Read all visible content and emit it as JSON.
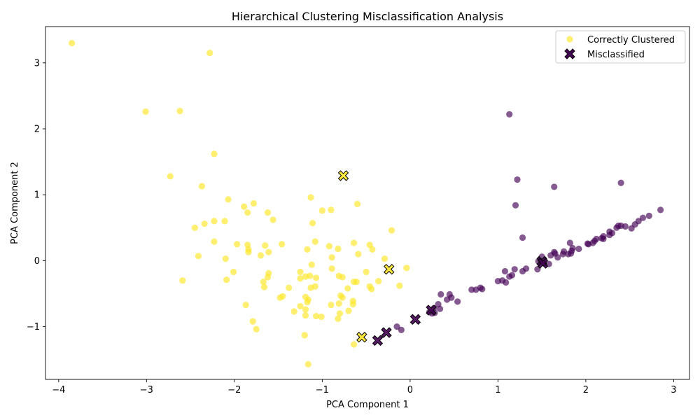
{
  "chart_data": {
    "type": "scatter",
    "title": "Hierarchical Clustering Misclassification Analysis",
    "xlabel": "PCA Component 1",
    "ylabel": "PCA Component 2",
    "xlim": [
      -4.15,
      3.18
    ],
    "ylim": [
      -1.8,
      3.55
    ],
    "xticks": [
      -4,
      -3,
      -2,
      -1,
      0,
      1,
      2,
      3
    ],
    "yticks": [
      -1,
      0,
      1,
      2,
      3
    ],
    "grid": false,
    "legend_position": "top-right",
    "colors": {
      "yellow": "#fde725",
      "purple": "#440154"
    },
    "legend": [
      {
        "label": "Correctly Clustered",
        "marker": "circle",
        "color": "#fde725"
      },
      {
        "label": "Misclassified",
        "marker": "x",
        "color": "#440154"
      }
    ],
    "series": [
      {
        "name": "Correctly Clustered",
        "marker": "circle",
        "points": [
          {
            "x": -3.85,
            "y": 3.3,
            "c": "yellow"
          },
          {
            "x": -2.28,
            "y": 3.15,
            "c": "yellow"
          },
          {
            "x": -3.01,
            "y": 2.26,
            "c": "yellow"
          },
          {
            "x": -2.62,
            "y": 2.27,
            "c": "yellow"
          },
          {
            "x": -2.23,
            "y": 1.62,
            "c": "yellow"
          },
          {
            "x": -2.73,
            "y": 1.28,
            "c": "yellow"
          },
          {
            "x": -2.37,
            "y": 1.13,
            "c": "yellow"
          },
          {
            "x": -2.07,
            "y": 0.93,
            "c": "yellow"
          },
          {
            "x": -1.89,
            "y": 0.82,
            "c": "yellow"
          },
          {
            "x": -1.78,
            "y": 0.87,
            "c": "yellow"
          },
          {
            "x": -1.85,
            "y": 0.73,
            "c": "yellow"
          },
          {
            "x": -1.62,
            "y": 0.73,
            "c": "yellow"
          },
          {
            "x": -1.56,
            "y": 0.62,
            "c": "yellow"
          },
          {
            "x": -2.23,
            "y": 0.6,
            "c": "yellow"
          },
          {
            "x": -2.11,
            "y": 0.6,
            "c": "yellow"
          },
          {
            "x": -2.34,
            "y": 0.56,
            "c": "yellow"
          },
          {
            "x": -2.45,
            "y": 0.5,
            "c": "yellow"
          },
          {
            "x": -2.23,
            "y": 0.29,
            "c": "yellow"
          },
          {
            "x": -1.97,
            "y": 0.25,
            "c": "yellow"
          },
          {
            "x": -1.85,
            "y": 0.24,
            "c": "yellow"
          },
          {
            "x": -1.65,
            "y": 0.23,
            "c": "yellow"
          },
          {
            "x": -1.46,
            "y": 0.25,
            "c": "yellow"
          },
          {
            "x": -1.84,
            "y": 0.17,
            "c": "yellow"
          },
          {
            "x": -1.84,
            "y": 0.13,
            "c": "yellow"
          },
          {
            "x": -1.61,
            "y": 0.13,
            "c": "yellow"
          },
          {
            "x": -1.7,
            "y": 0.08,
            "c": "yellow"
          },
          {
            "x": -2.41,
            "y": 0.07,
            "c": "yellow"
          },
          {
            "x": -2.1,
            "y": 0.03,
            "c": "yellow"
          },
          {
            "x": -2.01,
            "y": -0.17,
            "c": "yellow"
          },
          {
            "x": -1.61,
            "y": -0.19,
            "c": "yellow"
          },
          {
            "x": -1.62,
            "y": -0.25,
            "c": "yellow"
          },
          {
            "x": -2.59,
            "y": -0.3,
            "c": "yellow"
          },
          {
            "x": -2.09,
            "y": -0.29,
            "c": "yellow"
          },
          {
            "x": -1.67,
            "y": -0.32,
            "c": "yellow"
          },
          {
            "x": -1.66,
            "y": -0.4,
            "c": "yellow"
          },
          {
            "x": -1.38,
            "y": -0.41,
            "c": "yellow"
          },
          {
            "x": -1.45,
            "y": -0.54,
            "c": "yellow"
          },
          {
            "x": -1.48,
            "y": -0.56,
            "c": "yellow"
          },
          {
            "x": -1.87,
            "y": -0.67,
            "c": "yellow"
          },
          {
            "x": -1.32,
            "y": -0.77,
            "c": "yellow"
          },
          {
            "x": -1.79,
            "y": -0.92,
            "c": "yellow"
          },
          {
            "x": -1.75,
            "y": -1.04,
            "c": "yellow"
          },
          {
            "x": -1.2,
            "y": -1.13,
            "c": "yellow"
          },
          {
            "x": -1.16,
            "y": -1.57,
            "c": "yellow"
          },
          {
            "x": -1.13,
            "y": 0.96,
            "c": "yellow"
          },
          {
            "x": -1.0,
            "y": 0.76,
            "c": "yellow"
          },
          {
            "x": -0.9,
            "y": 0.77,
            "c": "yellow"
          },
          {
            "x": -0.6,
            "y": 0.86,
            "c": "yellow"
          },
          {
            "x": -1.11,
            "y": 0.57,
            "c": "yellow"
          },
          {
            "x": -0.21,
            "y": 0.46,
            "c": "yellow"
          },
          {
            "x": -1.08,
            "y": 0.29,
            "c": "yellow"
          },
          {
            "x": -0.64,
            "y": 0.27,
            "c": "yellow"
          },
          {
            "x": -0.46,
            "y": 0.24,
            "c": "yellow"
          },
          {
            "x": -0.92,
            "y": 0.22,
            "c": "yellow"
          },
          {
            "x": -1.17,
            "y": 0.17,
            "c": "yellow"
          },
          {
            "x": -0.82,
            "y": 0.18,
            "c": "yellow"
          },
          {
            "x": -0.43,
            "y": 0.17,
            "c": "yellow"
          },
          {
            "x": -0.59,
            "y": 0.1,
            "c": "yellow"
          },
          {
            "x": -0.89,
            "y": 0.05,
            "c": "yellow"
          },
          {
            "x": -0.29,
            "y": 0.03,
            "c": "yellow"
          },
          {
            "x": -1.12,
            "y": -0.06,
            "c": "yellow"
          },
          {
            "x": -0.89,
            "y": -0.12,
            "c": "yellow"
          },
          {
            "x": -0.04,
            "y": -0.11,
            "c": "yellow"
          },
          {
            "x": -1.25,
            "y": -0.17,
            "c": "yellow"
          },
          {
            "x": -0.5,
            "y": -0.17,
            "c": "yellow"
          },
          {
            "x": -1.19,
            "y": -0.24,
            "c": "yellow"
          },
          {
            "x": -1.14,
            "y": -0.23,
            "c": "yellow"
          },
          {
            "x": -0.81,
            "y": -0.23,
            "c": "yellow"
          },
          {
            "x": -1.25,
            "y": -0.27,
            "c": "yellow"
          },
          {
            "x": -0.77,
            "y": -0.25,
            "c": "yellow"
          },
          {
            "x": -1.07,
            "y": -0.26,
            "c": "yellow"
          },
          {
            "x": -0.64,
            "y": -0.32,
            "c": "yellow"
          },
          {
            "x": -0.61,
            "y": -0.32,
            "c": "yellow"
          },
          {
            "x": -0.36,
            "y": -0.31,
            "c": "yellow"
          },
          {
            "x": -1.08,
            "y": -0.39,
            "c": "yellow"
          },
          {
            "x": -0.46,
            "y": -0.39,
            "c": "yellow"
          },
          {
            "x": -0.12,
            "y": -0.38,
            "c": "yellow"
          },
          {
            "x": -1.13,
            "y": -0.41,
            "c": "yellow"
          },
          {
            "x": -0.71,
            "y": -0.42,
            "c": "yellow"
          },
          {
            "x": -0.44,
            "y": -0.43,
            "c": "yellow"
          },
          {
            "x": -0.79,
            "y": -0.53,
            "c": "yellow"
          },
          {
            "x": -1.19,
            "y": -0.55,
            "c": "yellow"
          },
          {
            "x": -0.77,
            "y": -0.56,
            "c": "yellow"
          },
          {
            "x": -1.16,
            "y": -0.59,
            "c": "yellow"
          },
          {
            "x": -1.17,
            "y": -0.63,
            "c": "yellow"
          },
          {
            "x": -0.65,
            "y": -0.61,
            "c": "yellow"
          },
          {
            "x": -0.81,
            "y": -0.65,
            "c": "yellow"
          },
          {
            "x": -0.65,
            "y": -0.66,
            "c": "yellow"
          },
          {
            "x": -0.9,
            "y": -0.67,
            "c": "yellow"
          },
          {
            "x": -1.25,
            "y": -0.69,
            "c": "yellow"
          },
          {
            "x": -1.19,
            "y": -0.74,
            "c": "yellow"
          },
          {
            "x": -0.7,
            "y": -0.76,
            "c": "yellow"
          },
          {
            "x": -0.8,
            "y": -0.8,
            "c": "yellow"
          },
          {
            "x": -1.19,
            "y": -0.83,
            "c": "yellow"
          },
          {
            "x": -1.07,
            "y": -0.84,
            "c": "yellow"
          },
          {
            "x": -1.01,
            "y": -0.85,
            "c": "yellow"
          },
          {
            "x": -0.82,
            "y": -0.88,
            "c": "yellow"
          },
          {
            "x": -0.64,
            "y": -1.27,
            "c": "yellow"
          },
          {
            "x": 1.13,
            "y": 2.22,
            "c": "purple"
          },
          {
            "x": 1.22,
            "y": 1.23,
            "c": "purple"
          },
          {
            "x": 2.4,
            "y": 1.18,
            "c": "purple"
          },
          {
            "x": 1.64,
            "y": 1.12,
            "c": "purple"
          },
          {
            "x": 1.2,
            "y": 0.84,
            "c": "purple"
          },
          {
            "x": 2.85,
            "y": 0.77,
            "c": "purple"
          },
          {
            "x": 2.72,
            "y": 0.68,
            "c": "purple"
          },
          {
            "x": 2.65,
            "y": 0.65,
            "c": "purple"
          },
          {
            "x": 2.6,
            "y": 0.6,
            "c": "purple"
          },
          {
            "x": 2.56,
            "y": 0.55,
            "c": "purple"
          },
          {
            "x": 2.37,
            "y": 0.53,
            "c": "purple"
          },
          {
            "x": 2.45,
            "y": 0.52,
            "c": "purple"
          },
          {
            "x": 2.52,
            "y": 0.49,
            "c": "purple"
          },
          {
            "x": 2.4,
            "y": 0.53,
            "c": "purple"
          },
          {
            "x": 2.35,
            "y": 0.5,
            "c": "purple"
          },
          {
            "x": 2.27,
            "y": 0.44,
            "c": "purple"
          },
          {
            "x": 2.3,
            "y": 0.42,
            "c": "purple"
          },
          {
            "x": 2.27,
            "y": 0.39,
            "c": "purple"
          },
          {
            "x": 2.2,
            "y": 0.37,
            "c": "purple"
          },
          {
            "x": 2.2,
            "y": 0.33,
            "c": "purple"
          },
          {
            "x": 2.18,
            "y": 0.34,
            "c": "purple"
          },
          {
            "x": 2.12,
            "y": 0.33,
            "c": "purple"
          },
          {
            "x": 2.1,
            "y": 0.3,
            "c": "purple"
          },
          {
            "x": 2.08,
            "y": 0.27,
            "c": "purple"
          },
          {
            "x": 2.03,
            "y": 0.25,
            "c": "purple"
          },
          {
            "x": 2.02,
            "y": 0.26,
            "c": "purple"
          },
          {
            "x": 1.28,
            "y": 0.35,
            "c": "purple"
          },
          {
            "x": 1.82,
            "y": 0.27,
            "c": "purple"
          },
          {
            "x": 1.85,
            "y": 0.19,
            "c": "purple"
          },
          {
            "x": 1.92,
            "y": 0.18,
            "c": "purple"
          },
          {
            "x": 1.84,
            "y": 0.15,
            "c": "purple"
          },
          {
            "x": 1.75,
            "y": 0.14,
            "c": "purple"
          },
          {
            "x": 1.64,
            "y": 0.13,
            "c": "purple"
          },
          {
            "x": 1.65,
            "y": 0.11,
            "c": "purple"
          },
          {
            "x": 1.8,
            "y": 0.1,
            "c": "purple"
          },
          {
            "x": 1.83,
            "y": 0.11,
            "c": "purple"
          },
          {
            "x": 1.74,
            "y": 0.1,
            "c": "purple"
          },
          {
            "x": 1.6,
            "y": 0.08,
            "c": "purple"
          },
          {
            "x": 1.68,
            "y": 0.05,
            "c": "purple"
          },
          {
            "x": 1.5,
            "y": 0.06,
            "c": "purple"
          },
          {
            "x": 1.46,
            "y": -0.01,
            "c": "purple"
          },
          {
            "x": 1.52,
            "y": -0.03,
            "c": "purple"
          },
          {
            "x": 1.58,
            "y": -0.05,
            "c": "purple"
          },
          {
            "x": 1.32,
            "y": -0.12,
            "c": "purple"
          },
          {
            "x": 1.45,
            "y": -0.13,
            "c": "purple"
          },
          {
            "x": 1.19,
            "y": -0.13,
            "c": "purple"
          },
          {
            "x": 1.08,
            "y": -0.16,
            "c": "purple"
          },
          {
            "x": 1.28,
            "y": -0.16,
            "c": "purple"
          },
          {
            "x": 1.16,
            "y": -0.22,
            "c": "purple"
          },
          {
            "x": 1.13,
            "y": -0.24,
            "c": "purple"
          },
          {
            "x": 1.0,
            "y": -0.31,
            "c": "purple"
          },
          {
            "x": 1.05,
            "y": -0.3,
            "c": "purple"
          },
          {
            "x": 1.09,
            "y": -0.33,
            "c": "purple"
          },
          {
            "x": 0.8,
            "y": -0.41,
            "c": "purple"
          },
          {
            "x": 0.82,
            "y": -0.43,
            "c": "purple"
          },
          {
            "x": 0.75,
            "y": -0.44,
            "c": "purple"
          },
          {
            "x": 0.7,
            "y": -0.44,
            "c": "purple"
          },
          {
            "x": 0.35,
            "y": -0.51,
            "c": "purple"
          },
          {
            "x": 0.45,
            "y": -0.51,
            "c": "purple"
          },
          {
            "x": 0.47,
            "y": -0.56,
            "c": "purple"
          },
          {
            "x": 0.42,
            "y": -0.59,
            "c": "purple"
          },
          {
            "x": 0.54,
            "y": -0.62,
            "c": "purple"
          },
          {
            "x": 0.32,
            "y": -0.66,
            "c": "purple"
          },
          {
            "x": 0.34,
            "y": -0.73,
            "c": "purple"
          },
          {
            "x": 0.27,
            "y": -0.72,
            "c": "purple"
          },
          {
            "x": 0.22,
            "y": -0.78,
            "c": "purple"
          },
          {
            "x": 0.28,
            "y": -0.79,
            "c": "purple"
          },
          {
            "x": 0.25,
            "y": -0.8,
            "c": "purple"
          },
          {
            "x": -0.15,
            "y": -1.0,
            "c": "purple"
          },
          {
            "x": -0.1,
            "y": -1.05,
            "c": "purple"
          }
        ]
      },
      {
        "name": "Misclassified",
        "marker": "x",
        "points": [
          {
            "x": -0.76,
            "y": 1.29,
            "c": "yellow"
          },
          {
            "x": -0.24,
            "y": -0.13,
            "c": "yellow"
          },
          {
            "x": -0.55,
            "y": -1.16,
            "c": "yellow"
          },
          {
            "x": -0.37,
            "y": -1.21,
            "c": "purple"
          },
          {
            "x": -0.27,
            "y": -1.09,
            "c": "purple"
          },
          {
            "x": 0.06,
            "y": -0.89,
            "c": "purple"
          },
          {
            "x": 0.24,
            "y": -0.75,
            "c": "purple"
          },
          {
            "x": 1.5,
            "y": -0.01,
            "c": "purple"
          },
          {
            "x": 1.51,
            "y": -0.04,
            "c": "purple"
          }
        ]
      }
    ]
  }
}
